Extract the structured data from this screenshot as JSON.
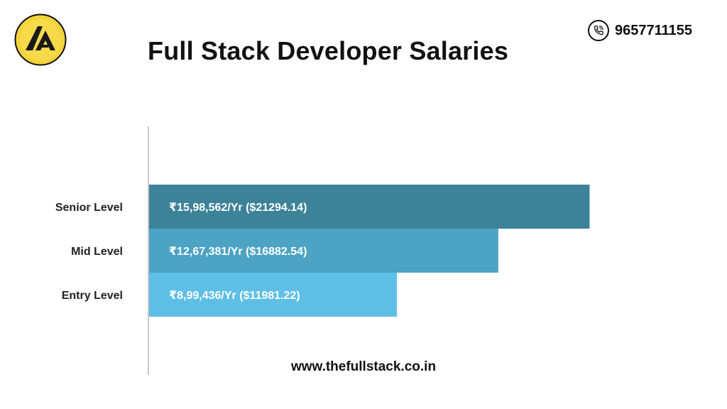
{
  "header": {
    "title": "Full Stack Developer Salaries",
    "phone": "9657711155",
    "website": "www.thefullstack.co.in"
  },
  "colors": {
    "logo_outer": "#f3d23a",
    "logo_inner": "#1a1a1a",
    "senior": "#3c8299",
    "mid": "#4da3c4",
    "entry": "#5ebfe6"
  },
  "icons": {
    "logo": "brand-logo",
    "phone": "phone-icon"
  },
  "chart_data": {
    "type": "bar",
    "orientation": "horizontal",
    "categories": [
      "Senior Level",
      "Mid Level",
      "Entry Level"
    ],
    "values": [
      1598562,
      1267381,
      899436
    ],
    "data_labels": [
      "₹15,98,562/Yr ($21294.14)",
      "₹12,67,381/Yr ($16882.54)",
      "₹8,99,436/Yr ($11981.22)"
    ],
    "colors": [
      "#3c8299",
      "#4da3c4",
      "#5ebfe6"
    ],
    "xlim": [
      0,
      1600000
    ],
    "grid": false,
    "legend": "none"
  }
}
